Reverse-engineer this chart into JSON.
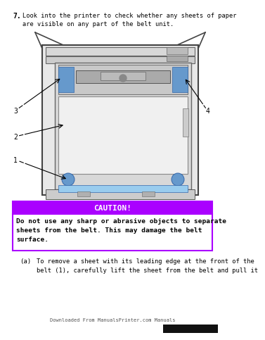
{
  "bg_color": "#ffffff",
  "step_number": "7.",
  "step_text": "Look into the printer to check whether any sheets of paper\nare visible on any part of the belt unit.",
  "caution_title": "CAUTION!",
  "caution_title_color": "#ffffff",
  "caution_header_bg": "#aa00ff",
  "caution_body_border": "#aa00ff",
  "caution_body_bg": "#ffffff",
  "caution_text_line1": "Do not use any sharp or abrasive objects to separate",
  "caution_text_line2": "sheets from the belt. This may damage the belt",
  "caution_text_line3": "surface.",
  "sub_label": "(a)",
  "sub_text_line1": "To remove a sheet with its leading edge at the front of the",
  "sub_text_line2": "belt (1), carefully lift the sheet from the belt and pull it",
  "footer_text": "Downloaded From ManualsPrinter.com Manuals",
  "labels": [
    "1",
    "2",
    "3",
    "4"
  ],
  "cyan_color": "#6699cc",
  "light_blue_color": "#99ccee",
  "dark_color": "#444444",
  "mid_color": "#888888",
  "light_gray": "#e0e0e0",
  "mid_gray": "#c0c0c0",
  "dark_gray": "#999999"
}
